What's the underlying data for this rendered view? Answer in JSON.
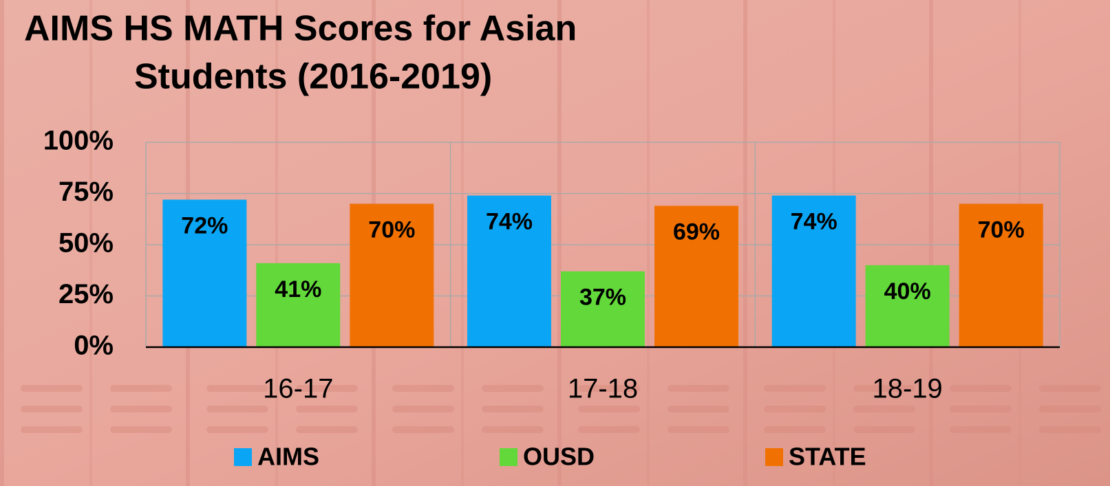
{
  "chart_data": {
    "type": "bar",
    "title": [
      "AIMS HS MATH Scores for Asian",
      "Students  (2016-2019)"
    ],
    "categories": [
      "16-17",
      "17-18",
      "18-19"
    ],
    "series": [
      {
        "name": "AIMS",
        "color": "#0aa6f5",
        "values": [
          72,
          74,
          74
        ],
        "value_labels": [
          "72%",
          "74%",
          "74%"
        ]
      },
      {
        "name": "OUSD",
        "color": "#62d83a",
        "values": [
          41,
          37,
          40
        ],
        "value_labels": [
          "41%",
          "37%",
          "40%"
        ]
      },
      {
        "name": "STATE",
        "color": "#f07102",
        "values": [
          70,
          69,
          70
        ],
        "value_labels": [
          "70%",
          "69%",
          "70%"
        ]
      }
    ],
    "ylim": [
      0,
      100
    ],
    "yticks": [
      {
        "value": 0,
        "label": "0%"
      },
      {
        "value": 25,
        "label": "25%"
      },
      {
        "value": 50,
        "label": "50%"
      },
      {
        "value": 75,
        "label": "75%"
      },
      {
        "value": 100,
        "label": "100%"
      }
    ],
    "grid": true,
    "legend": "bottom"
  }
}
